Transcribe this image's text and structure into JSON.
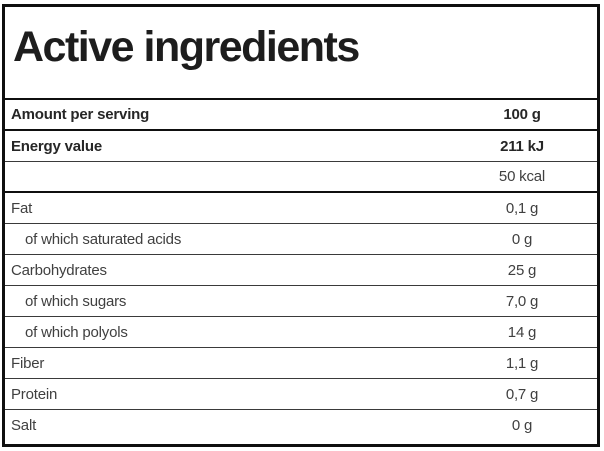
{
  "title": "Active ingredients",
  "colors": {
    "outer_border": "#0f0f0f",
    "inner_separator": "#3a3a3a",
    "bold_text": "#262626",
    "regular_text": "#404040",
    "background": "#ffffff"
  },
  "table": {
    "rows": [
      {
        "label": "Amount per serving",
        "value": "100 g"
      },
      {
        "label": "Energy value",
        "value": "211 kJ"
      },
      {
        "label": "",
        "value": "50 kcal"
      },
      {
        "label": "Fat",
        "value": "0,1 g"
      },
      {
        "label": "of which saturated acids",
        "value": "0 g"
      },
      {
        "label": "Carbohydrates",
        "value": "25 g"
      },
      {
        "label": "of which sugars",
        "value": "7,0 g"
      },
      {
        "label": "of which polyols",
        "value": "14 g"
      },
      {
        "label": "Fiber",
        "value": "1,1 g"
      },
      {
        "label": "Protein",
        "value": "0,7 g"
      },
      {
        "label": "Salt",
        "value": "0 g"
      }
    ]
  }
}
